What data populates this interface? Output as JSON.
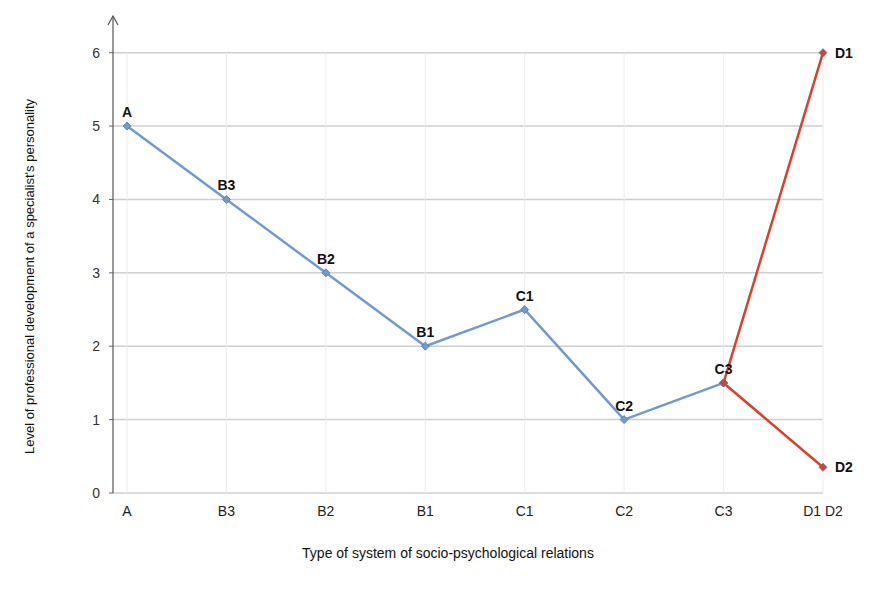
{
  "chart_data": {
    "type": "line",
    "x_label": "Type of system of socio-psychological relations",
    "y_label": "Level of professional development of a specialist's personality",
    "categories": [
      "A",
      "B3",
      "B2",
      "B1",
      "C1",
      "C2",
      "C3",
      "D1 D2"
    ],
    "ylim": [
      0,
      6.5
    ],
    "yticks": [
      0,
      1,
      2,
      3,
      4,
      5,
      6
    ],
    "grid": true,
    "marker": "diamond",
    "series": [
      {
        "color": "#6f9bd2",
        "values": [
          5,
          4,
          3,
          2,
          2.5,
          1,
          1.5,
          null
        ],
        "point_labels": [
          "A",
          "B3",
          "B2",
          "B1",
          "C1",
          "C2",
          "C3",
          null
        ]
      },
      {
        "color": "#d9412b",
        "values": [
          null,
          null,
          null,
          null,
          null,
          null,
          1.5,
          6
        ],
        "point_labels": [
          null,
          null,
          null,
          null,
          null,
          null,
          null,
          "D1"
        ]
      },
      {
        "color": "#d9412b",
        "values": [
          null,
          null,
          null,
          null,
          null,
          null,
          1.5,
          0.35
        ],
        "point_labels": [
          null,
          null,
          null,
          null,
          null,
          null,
          null,
          "D2"
        ]
      }
    ]
  }
}
